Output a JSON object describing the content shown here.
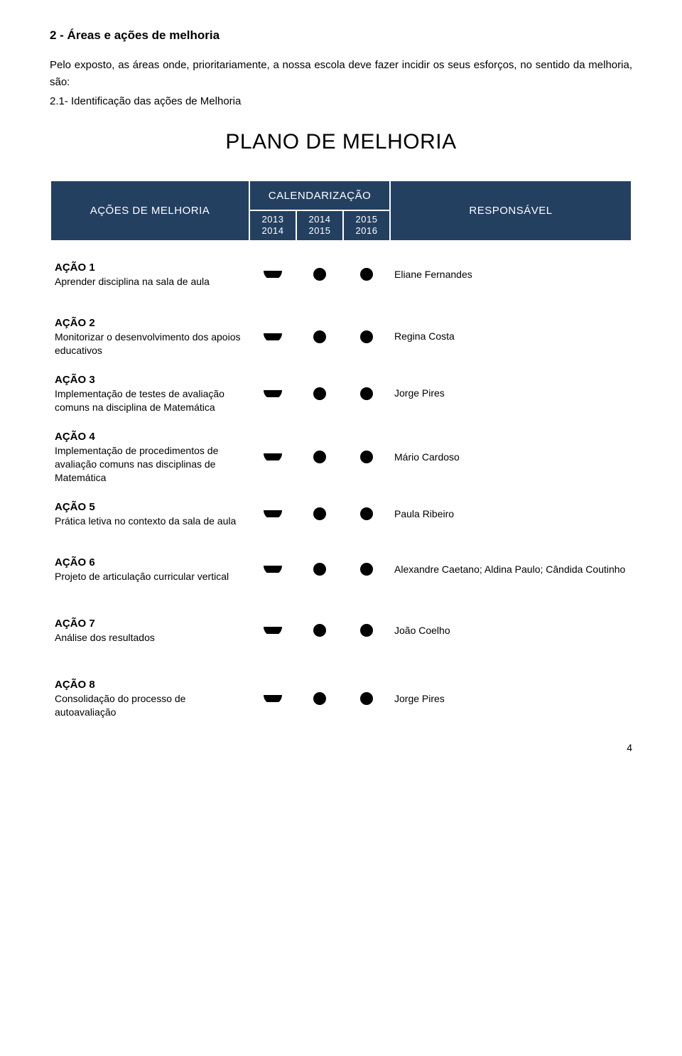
{
  "heading": "2 - Áreas e ações de melhoria",
  "intro": "Pelo exposto, as áreas onde, prioritariamente, a nossa escola deve fazer incidir os seus esforços, no sentido da melhoria, são:",
  "subheading": "2.1- Identificação das ações de Melhoria",
  "main_title": "PLANO DE MELHORIA",
  "headers": {
    "actions": "AÇÕES DE MELHORIA",
    "calendar": "CALENDARIZAÇÃO",
    "responsible": "RESPONSÁVEL",
    "years": [
      {
        "a": "2013",
        "b": "2014"
      },
      {
        "a": "2014",
        "b": "2015"
      },
      {
        "a": "2015",
        "b": "2016"
      }
    ]
  },
  "actions": [
    {
      "name": "AÇÃO 1",
      "description": "Aprender disciplina na sala de aula",
      "marks": [
        "half",
        "full",
        "full"
      ],
      "responsible": "Eliane Fernandes"
    },
    {
      "name": "AÇÃO 2",
      "description": "Monitorizar o desenvolvimento dos apoios educativos",
      "marks": [
        "half",
        "full",
        "full"
      ],
      "responsible": "Regina Costa"
    },
    {
      "name": "AÇÃO 3",
      "description": "Implementação de testes de avaliação comuns na disciplina de Matemática",
      "marks": [
        "half",
        "full",
        "full"
      ],
      "responsible": "Jorge Pires"
    },
    {
      "name": "AÇÃO 4",
      "description": "Implementação de procedimentos de avaliação comuns nas disciplinas de Matemática",
      "marks": [
        "half",
        "full",
        "full"
      ],
      "responsible": "Mário Cardoso"
    },
    {
      "name": "AÇÃO 5",
      "description": "Prática letiva no contexto da sala de aula",
      "marks": [
        "half",
        "full",
        "full"
      ],
      "responsible": "Paula Ribeiro"
    },
    {
      "name": "AÇÃO 6",
      "description": "Projeto de articulação curricular vertical",
      "marks": [
        "half",
        "full",
        "full"
      ],
      "responsible": "Alexandre Caetano; Aldina Paulo; Cândida Coutinho"
    },
    {
      "name": "AÇÃO 7",
      "description": "Análise dos resultados",
      "marks": [
        "half",
        "full",
        "full"
      ],
      "responsible": "João Coelho"
    },
    {
      "name": "AÇÃO 8",
      "description": "Consolidação do processo de autoavaliação",
      "marks": [
        "half",
        "full",
        "full"
      ],
      "responsible": "Jorge Pires"
    }
  ],
  "gaps_after": [
    0,
    4,
    5,
    6
  ],
  "big_gaps_after": [
    5,
    6
  ],
  "page_number": "4",
  "style": {
    "header_bg": "#244061",
    "header_fg": "#ffffff",
    "mark_color": "#000000",
    "mark_full_radius": 9,
    "mark_half_width": 26,
    "mark_half_height": 10
  }
}
